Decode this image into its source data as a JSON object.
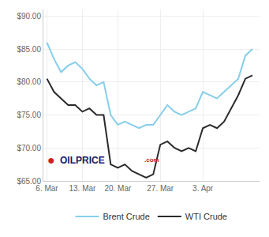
{
  "chart_data": {
    "type": "line",
    "x": [
      0,
      1,
      2,
      3,
      4,
      5,
      6,
      7,
      8,
      9,
      10,
      11,
      12,
      13,
      14,
      15,
      16,
      17,
      18,
      19,
      20,
      21,
      22,
      23,
      24,
      25,
      26,
      27,
      28,
      29
    ],
    "series": [
      {
        "name": "Brent Crude",
        "color": "#87CEEB",
        "values": [
          86.0,
          83.5,
          81.5,
          82.5,
          83.0,
          82.0,
          80.5,
          79.5,
          80.0,
          75.0,
          73.5,
          74.0,
          73.5,
          73.0,
          73.5,
          73.5,
          75.0,
          76.5,
          75.5,
          75.0,
          75.5,
          76.0,
          78.5,
          78.0,
          77.5,
          78.5,
          79.5,
          80.5,
          84.0,
          85.0
        ]
      },
      {
        "name": "WTI Crude",
        "color": "#2a2a2a",
        "values": [
          80.5,
          78.5,
          77.5,
          76.5,
          76.5,
          75.5,
          76.0,
          75.0,
          75.0,
          67.5,
          67.0,
          67.5,
          66.5,
          66.0,
          65.5,
          66.0,
          70.5,
          71.0,
          70.0,
          69.5,
          70.0,
          69.5,
          73.0,
          73.5,
          73.0,
          74.0,
          76.0,
          78.0,
          80.5,
          81.0
        ]
      }
    ],
    "xlim": [
      -0.5,
      30.0
    ],
    "xticks": [
      {
        "value": 0,
        "label": "6. Mar"
      },
      {
        "value": 5,
        "label": "13. Mar"
      },
      {
        "value": 10,
        "label": "20. Mar"
      },
      {
        "value": 16,
        "label": "27. Mar"
      },
      {
        "value": 22,
        "label": "3. Apr"
      }
    ],
    "ylim": [
      65.0,
      91.0
    ],
    "yticks": [
      {
        "value": 65.0,
        "label": "$65.00"
      },
      {
        "value": 70.0,
        "label": "$70.00"
      },
      {
        "value": 75.0,
        "label": "$75.00"
      },
      {
        "value": 80.0,
        "label": "$80.00"
      },
      {
        "value": 85.0,
        "label": "$85.00"
      },
      {
        "value": 90.0,
        "label": "$90.00"
      }
    ],
    "grid": true,
    "legend": "bottom",
    "annotations": [
      {
        "text": "●",
        "color": "#cc2222"
      },
      {
        "text": "OILPRICE",
        "color": "#1a1a6e"
      },
      {
        "text": ".com",
        "color": "#cc2222"
      }
    ]
  }
}
